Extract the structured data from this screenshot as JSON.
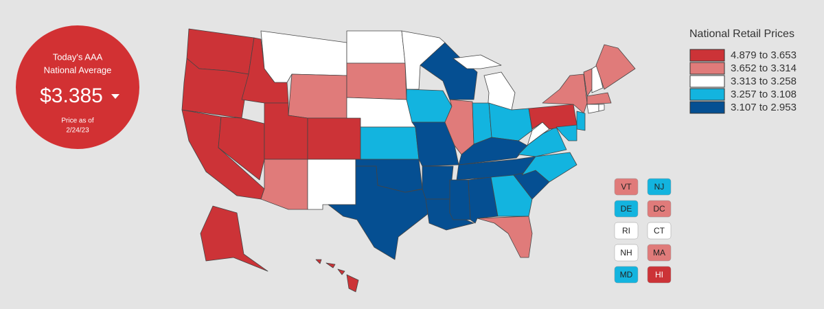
{
  "badge": {
    "line1": "Today's AAA",
    "line2": "National Average",
    "price": "$3.385",
    "line3": "Price as of",
    "date": "2/24/23"
  },
  "legend": {
    "title": "National Retail Prices",
    "bins": [
      {
        "label": "4.879 to 3.653",
        "color": "#cc3337"
      },
      {
        "label": "3.652 to 3.314",
        "color": "#e07b7a"
      },
      {
        "label": "3.313 to 3.258",
        "color": "#ffffff"
      },
      {
        "label": "3.257 to 3.108",
        "color": "#13b4df"
      },
      {
        "label": "3.107 to 2.953",
        "color": "#054f92"
      }
    ]
  },
  "state_bins": [
    0,
    0,
    0,
    0,
    0,
    2,
    1,
    0,
    0,
    1,
    2,
    2,
    1,
    2,
    3,
    4,
    4,
    2,
    3,
    4,
    4,
    4,
    4,
    1,
    2,
    2,
    3,
    3,
    4,
    4,
    4,
    4,
    3,
    1,
    4,
    3,
    3,
    2,
    0,
    1,
    1,
    2,
    1,
    1,
    2,
    2,
    3,
    3,
    0,
    0,
    0,
    0,
    0
  ],
  "small_states": [
    {
      "label": "VT",
      "bin": 1
    },
    {
      "label": "NJ",
      "bin": 3
    },
    {
      "label": "DE",
      "bin": 3
    },
    {
      "label": "DC",
      "bin": 1
    },
    {
      "label": "RI",
      "bin": 2
    },
    {
      "label": "CT",
      "bin": 2
    },
    {
      "label": "NH",
      "bin": 2
    },
    {
      "label": "MA",
      "bin": 1
    },
    {
      "label": "MD",
      "bin": 3
    },
    {
      "label": "HI",
      "bin": 0
    }
  ]
}
